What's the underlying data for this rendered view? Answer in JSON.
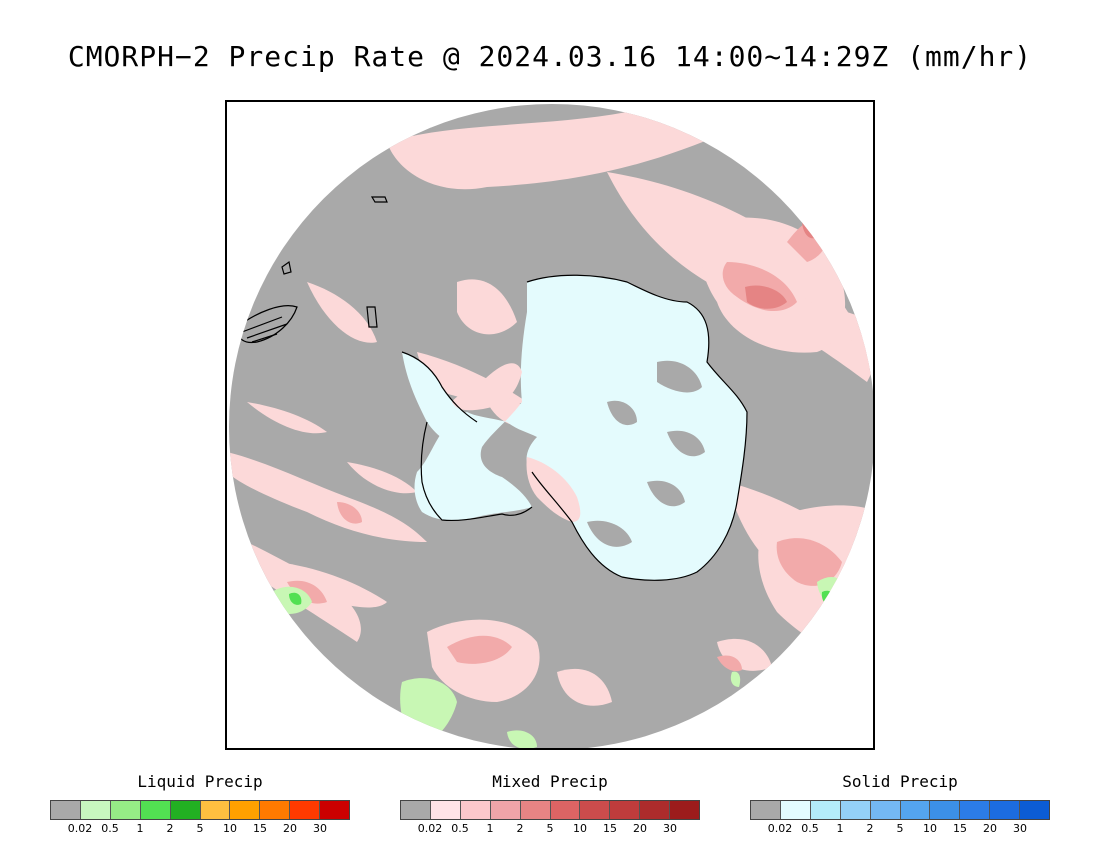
{
  "title": "CMORPH−2 Precip Rate @ 2024.03.16 14:00~14:29Z (mm/hr)",
  "map": {
    "projection": "south-polar stereographic",
    "colors": {
      "no_precip": "#a9a9a9",
      "land_ice": "#e4fbfd",
      "coast": "#000000",
      "mixed_light": "#fcd9d9",
      "mixed_med": "#f2aaaa",
      "mixed_heavy": "#e58484",
      "liquid_light": "#c8f7b4",
      "liquid_med": "#52e052",
      "liquid_heavy": "#22b022"
    }
  },
  "legends": [
    {
      "title": "Liquid Precip",
      "colors": [
        "#a9a9a9",
        "#c8f7c0",
        "#96ec86",
        "#52e052",
        "#22b022",
        "#ffc040",
        "#ffa000",
        "#ff7a00",
        "#ff3a00",
        "#cc0000"
      ],
      "ticks": [
        "0.02",
        "0.5",
        "1",
        "2",
        "5",
        "10",
        "15",
        "20",
        "30"
      ]
    },
    {
      "title": "Mixed Precip",
      "colors": [
        "#a9a9a9",
        "#ffe4e8",
        "#fcc8cc",
        "#f0a4a8",
        "#e88484",
        "#dc6464",
        "#cc4c4c",
        "#c03c3c",
        "#ad2c2c",
        "#9c1c1c"
      ],
      "ticks": [
        "0.02",
        "0.5",
        "1",
        "2",
        "5",
        "10",
        "15",
        "20",
        "30"
      ]
    },
    {
      "title": "Solid Precip",
      "colors": [
        "#a9a9a9",
        "#e4fcff",
        "#b4ecfa",
        "#94d0f8",
        "#74b8f4",
        "#54a4f0",
        "#3c90e8",
        "#2c7ce8",
        "#1c6ce0",
        "#0c5cd4"
      ],
      "ticks": [
        "0.02",
        "0.5",
        "1",
        "2",
        "5",
        "10",
        "15",
        "20",
        "30"
      ]
    }
  ]
}
